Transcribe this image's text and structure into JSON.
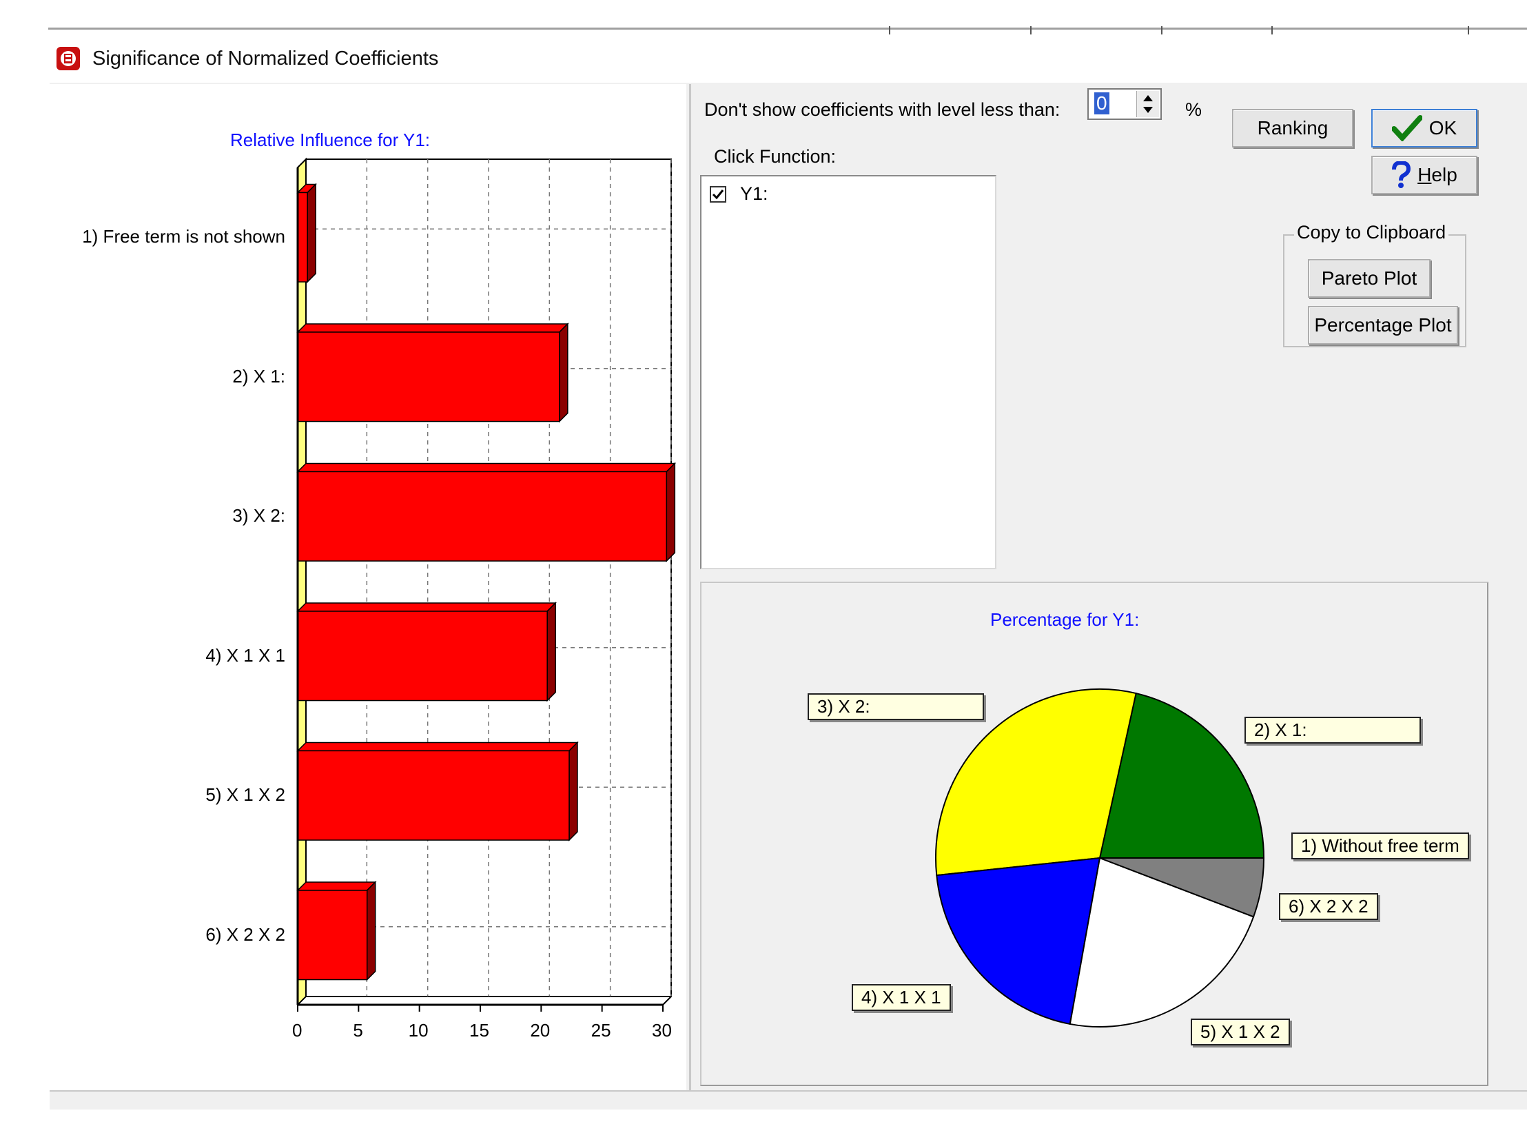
{
  "window": {
    "title": "Significance of Normalized Coefficients",
    "icon": "coefficients-app-icon"
  },
  "controls": {
    "threshold_label": "Don't show coefficients  with level  less than:",
    "threshold_value": "0",
    "threshold_unit": "%",
    "click_function_label": "Click Function:",
    "functions": [
      {
        "label": "Y1:",
        "checked": true
      }
    ],
    "ranking_label": "Ranking",
    "ok_label": "OK",
    "help_label": "Help",
    "clipboard_group_label": "Copy to Clipboard",
    "pareto_plot_label": "Pareto  Plot",
    "percentage_plot_label": "Percentage Plot"
  },
  "chart_data": [
    {
      "type": "bar",
      "orientation": "horizontal",
      "title": "Relative Influence for Y1:",
      "categories": [
        "1) Free term is not shown",
        "2)  X 1:",
        "3)  X 2:",
        "4)  X 1 X 1",
        "5)  X 1 X 2",
        "6)  X 2 X 2"
      ],
      "values": [
        0.8,
        21.5,
        30.3,
        20.5,
        22.3,
        5.7
      ],
      "xlim": [
        0,
        30
      ],
      "xticks": [
        "0",
        "5",
        "10",
        "15",
        "20",
        "25",
        "30"
      ],
      "grid": true,
      "bar_color": "#ff0000"
    },
    {
      "type": "pie",
      "title": "Percentage for Y1:",
      "slices": [
        {
          "label": "1) Without free term",
          "value": 0.0,
          "color": "#ffffff"
        },
        {
          "label": "2)  X 1:",
          "value": 21.6,
          "color": "#007800"
        },
        {
          "label": "3)  X 2:",
          "value": 30.4,
          "color": "#ffff00"
        },
        {
          "label": "4)  X 1 X 1",
          "value": 20.6,
          "color": "#0000ff"
        },
        {
          "label": "5)  X 1 X 2",
          "value": 22.4,
          "color": "#ffffff"
        },
        {
          "label": "6)  X 2 X 2",
          "value": 5.7,
          "color": "#808080"
        }
      ]
    }
  ],
  "colors": {
    "accent_blue": "#1010ff",
    "bar_red": "#ff0000",
    "callout_bg": "#ffffe1"
  }
}
